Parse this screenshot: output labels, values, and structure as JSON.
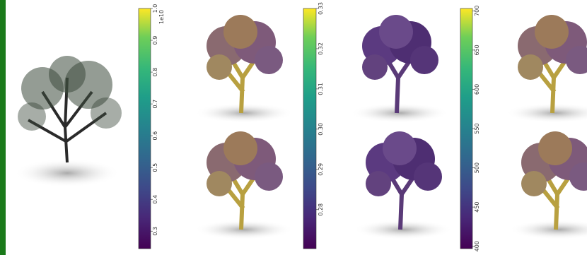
{
  "colorbars": [
    {
      "offset_label": "1e10",
      "ylim": [
        0.245,
        1.0
      ],
      "yticks": [
        0.3,
        0.4,
        0.5,
        0.6,
        0.7,
        0.8,
        0.9,
        {
          "value": 1.0,
          "label": "1.0"
        }
      ]
    },
    {
      "ylim": [
        0.2703,
        0.33
      ],
      "yticks": [
        0.28,
        0.29,
        {
          "value": 0.3,
          "label": "0.30"
        },
        0.31,
        0.32,
        0.33
      ]
    },
    {
      "ylim": [
        397,
        703
      ],
      "yticks": [
        400,
        450,
        500,
        550,
        600,
        650,
        700
      ]
    }
  ]
}
